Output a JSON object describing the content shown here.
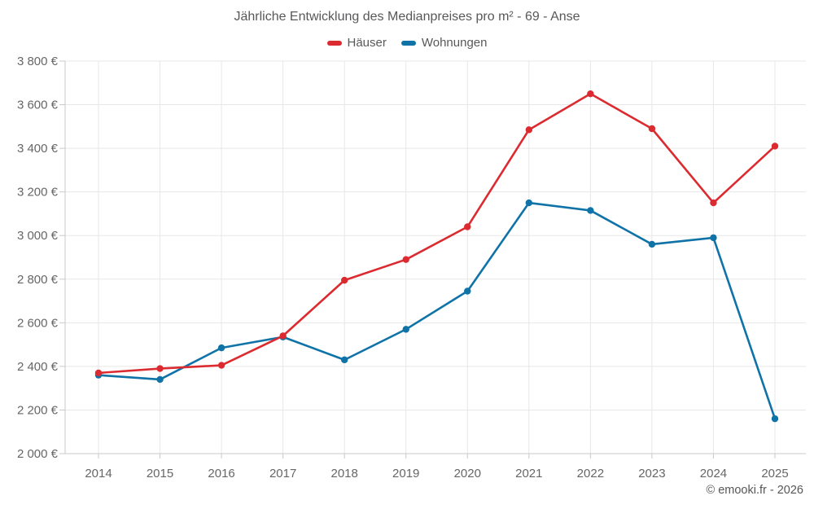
{
  "header": {
    "title": "Jährliche Entwicklung des Medianpreises pro m² - 69 - Anse"
  },
  "legend": {
    "items": [
      {
        "label": "Häuser",
        "color": "#dc2b30"
      },
      {
        "label": "Wohnungen",
        "color": "#0f73a8"
      }
    ]
  },
  "footer": {
    "credit": "© emooki.fr - 2026"
  },
  "colors": {
    "haeuser": "#dc2b30",
    "wohnungen": "#0f73a8",
    "grid": "#e7e7e7",
    "axis": "#c9c9c9",
    "text": "#666666"
  },
  "chart_data": {
    "type": "line",
    "title": "Jährliche Entwicklung des Medianpreises pro m² - 69 - Anse",
    "categories": [
      "2014",
      "2015",
      "2016",
      "2017",
      "2018",
      "2019",
      "2020",
      "2021",
      "2022",
      "2023",
      "2024",
      "2025"
    ],
    "series": [
      {
        "name": "Häuser",
        "color": "#dc2b30",
        "values": [
          2370,
          2390,
          2405,
          2540,
          2795,
          2890,
          3040,
          3485,
          3650,
          3490,
          3150,
          3410
        ]
      },
      {
        "name": "Wohnungen",
        "color": "#0f73a8",
        "values": [
          2360,
          2340,
          2485,
          2535,
          2430,
          2570,
          2745,
          3150,
          3115,
          2960,
          2990,
          2160
        ]
      }
    ],
    "xlabel": "",
    "ylabel": "",
    "ylim": [
      2000,
      3800
    ],
    "ytick_step": 200,
    "ytick_labels": [
      "2 000 €",
      "2 200 €",
      "2 400 €",
      "2 600 €",
      "2 800 €",
      "3 000 €",
      "3 200 €",
      "3 400 €",
      "3 600 €",
      "3 800 €"
    ],
    "grid": true,
    "legend_position": "top",
    "currency": "€"
  }
}
